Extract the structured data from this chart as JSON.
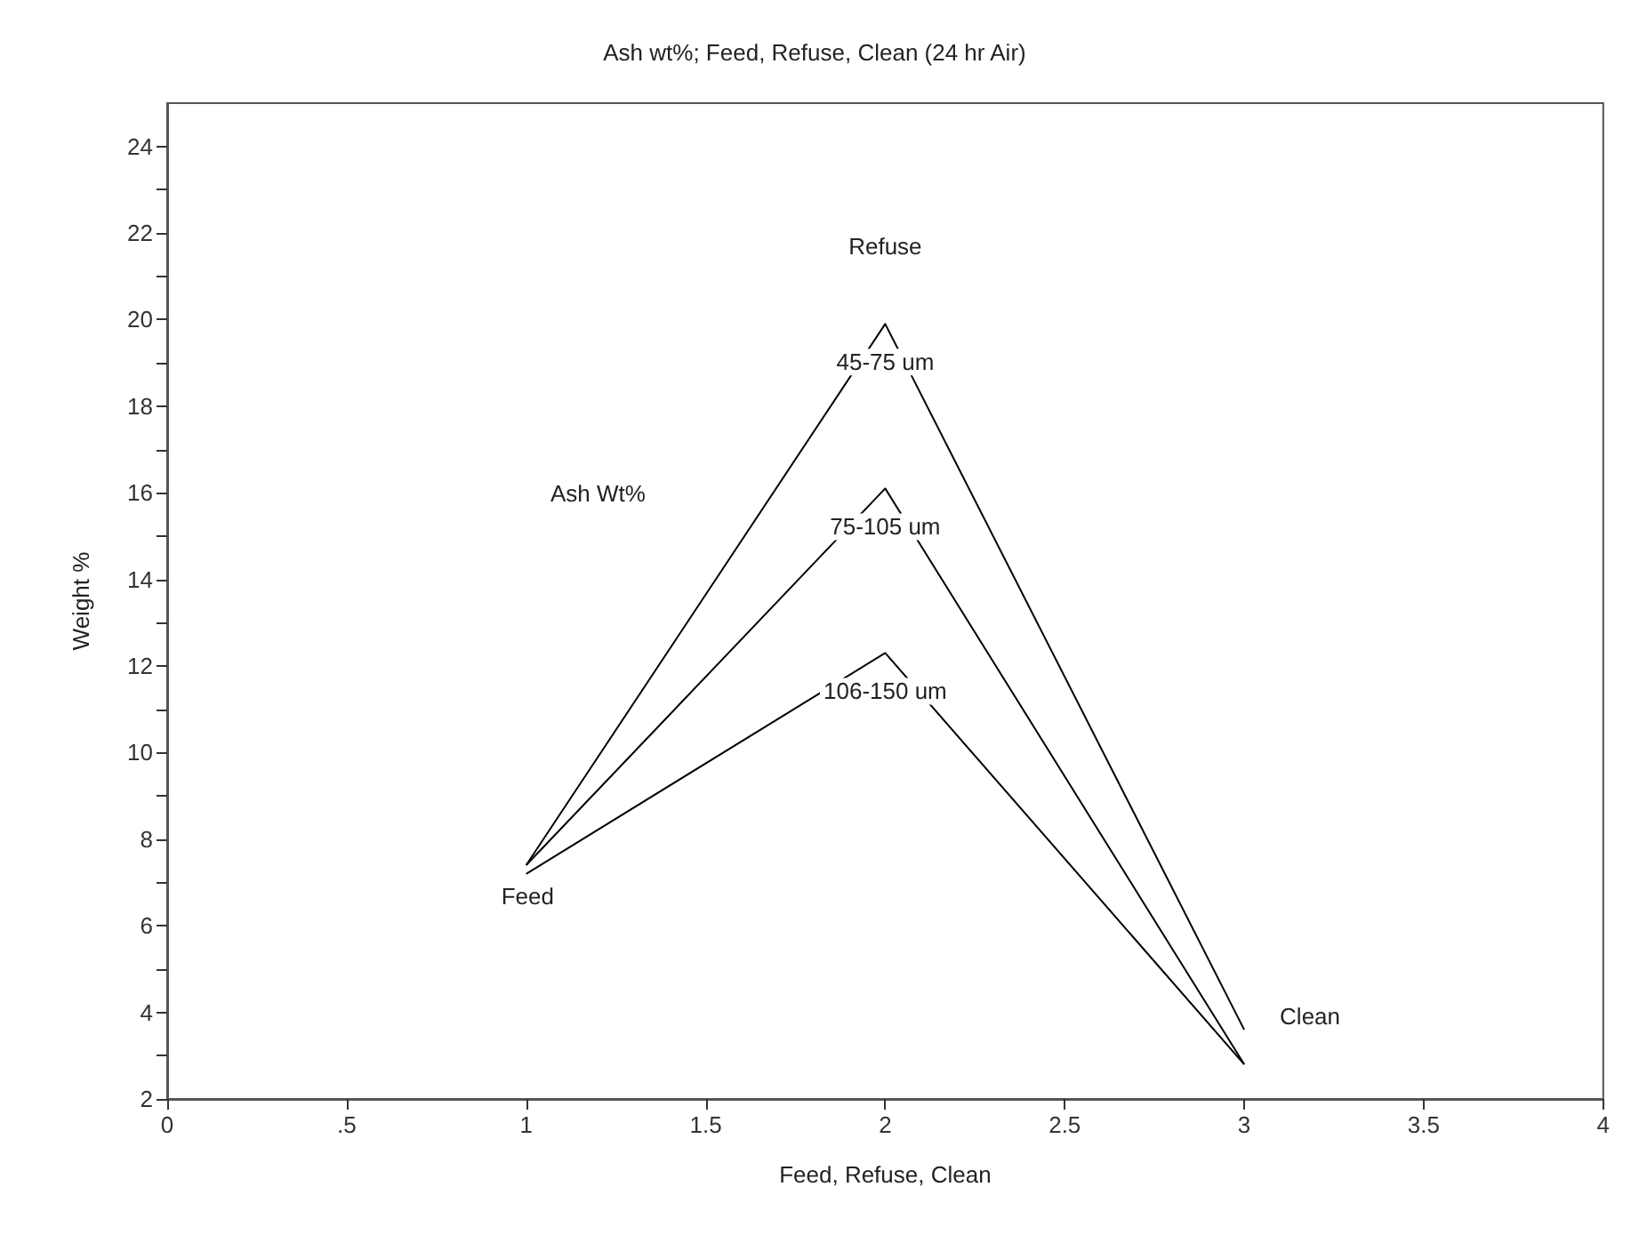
{
  "chart_data": {
    "type": "line",
    "title": "Ash wt%; Feed, Refuse, Clean (24 hr Air)",
    "xlabel": "Feed, Refuse, Clean",
    "ylabel": "Weight %",
    "x": [
      1,
      2,
      3
    ],
    "series": [
      {
        "name": "45-75 um",
        "color": "#000000",
        "values": [
          7.4,
          19.9,
          3.6
        ]
      },
      {
        "name": "75-105 um",
        "color": "#000000",
        "values": [
          7.4,
          16.1,
          2.8
        ]
      },
      {
        "name": "106-150 um",
        "color": "#000000",
        "values": [
          7.2,
          12.3,
          2.8
        ]
      }
    ],
    "annotations": [
      "Ash Wt%",
      {
        "text": "Feed",
        "x": 1,
        "y": 7.2
      },
      {
        "text": "Refuse",
        "x": 2,
        "y": 19.9
      },
      {
        "text": "Clean",
        "x": 3,
        "y": 3.6
      }
    ],
    "xlim": [
      0,
      4
    ],
    "xticks": [
      0,
      {
        "value": 0.5,
        "label": ".5"
      },
      1,
      1.5,
      2,
      2.5,
      3,
      3.5,
      4
    ],
    "ylim": [
      2,
      25
    ],
    "yticks": [
      2,
      {
        "value": 3,
        "label": null
      },
      4,
      {
        "value": 5,
        "label": null
      },
      6,
      {
        "value": 7,
        "label": null
      },
      8,
      {
        "value": 9,
        "label": null
      },
      10,
      {
        "value": 11,
        "label": null
      },
      12,
      {
        "value": 13,
        "label": null
      },
      14,
      {
        "value": 15,
        "label": null
      },
      16,
      {
        "value": 17,
        "label": null
      },
      18,
      {
        "value": 19,
        "label": null
      },
      20,
      {
        "value": 21,
        "label": null
      },
      22,
      {
        "value": 23,
        "label": null
      },
      24
    ],
    "grid": false,
    "legend": false,
    "marker": "none",
    "line_style": "solid"
  }
}
